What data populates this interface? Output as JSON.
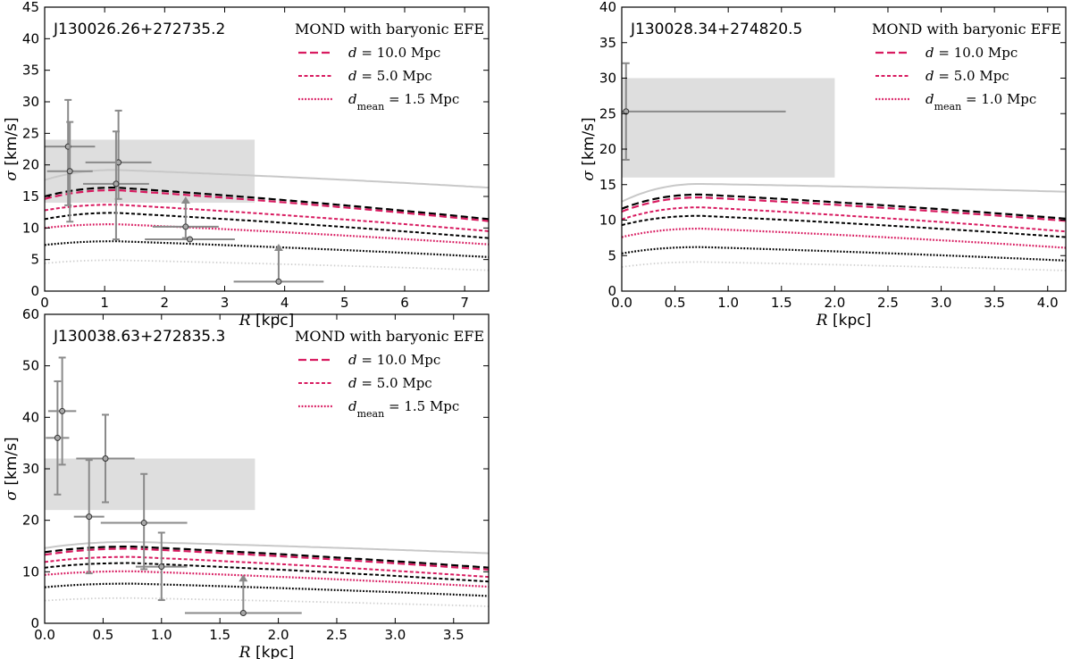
{
  "legend": {
    "title": "MOND with baryonic EFE",
    "d_prefix": "d",
    "dmean_prefix": "d",
    "dmean_sub": "mean",
    "eq": " = ",
    "unit": " Mpc"
  },
  "colors": {
    "pink": "#d81b60",
    "black": "#000000",
    "grey_curve": "#c8c8c8",
    "dotted_grey": "#cfcfcf",
    "shade": "#dedede",
    "errbar": "#8a8a8a",
    "marker": "#a8a8a8"
  },
  "chart_data": [
    {
      "type": "line",
      "title": "J130026.26+272735.2",
      "xlabel_symbol": "R",
      "xlabel_unit": "[kpc]",
      "ylabel_symbol": "σ",
      "ylabel_unit": "[km/s]",
      "xlim": [
        0,
        7.4
      ],
      "ylim": [
        0,
        45
      ],
      "xticks": [
        0,
        1,
        2,
        3,
        4,
        5,
        6,
        7
      ],
      "xtick_labels": [
        "0",
        "1",
        "2",
        "3",
        "4",
        "5",
        "6",
        "7"
      ],
      "yticks": [
        0,
        5,
        10,
        15,
        20,
        25,
        30,
        35,
        40,
        45
      ],
      "ytick_labels": [
        "0",
        "5",
        "10",
        "15",
        "20",
        "25",
        "30",
        "35",
        "40",
        "45"
      ],
      "legend_entries": [
        {
          "style": "long-dash",
          "distance": "10.0",
          "mean": false
        },
        {
          "style": "short-dash",
          "distance": "5.0",
          "mean": false
        },
        {
          "style": "dotted",
          "distance": "1.5",
          "mean": true
        }
      ],
      "shaded_region": {
        "x": [
          0,
          3.5
        ],
        "y": [
          14,
          24
        ]
      },
      "curves": [
        {
          "name": "grey",
          "peak": 19.2,
          "start": 17.6,
          "end": 16.4
        },
        {
          "name": "black-long",
          "peak": 16.4,
          "start": 15.0,
          "end": 11.4
        },
        {
          "name": "pink-long",
          "peak": 16.0,
          "start": 14.6,
          "end": 11.1
        },
        {
          "name": "pink-short",
          "peak": 13.7,
          "start": 12.8,
          "end": 9.5
        },
        {
          "name": "black-short",
          "peak": 12.4,
          "start": 11.4,
          "end": 8.4
        },
        {
          "name": "pink-dotted",
          "peak": 10.6,
          "start": 10.0,
          "end": 7.4
        },
        {
          "name": "black-dotted",
          "peak": 7.9,
          "start": 7.3,
          "end": 5.4
        },
        {
          "name": "grey-dotted",
          "peak": 4.9,
          "start": 4.4,
          "end": 3.3
        }
      ],
      "curve_peak_x": 1.2,
      "points": [
        {
          "x": 0.39,
          "y": 22.9,
          "xerr": 0.45,
          "yerr_lo": 9.3,
          "yerr_hi": 7.4
        },
        {
          "x": 0.42,
          "y": 19.0,
          "xerr": 0.38,
          "yerr_lo": 8.0,
          "yerr_hi": 7.8
        },
        {
          "x": 1.23,
          "y": 20.4,
          "xerr": 0.55,
          "yerr_lo": 5.8,
          "yerr_hi": 8.2
        },
        {
          "x": 1.19,
          "y": 17.0,
          "xerr": 0.55,
          "yerr_lo": 8.8,
          "yerr_hi": 8.3
        },
        {
          "x": 2.35,
          "y": 10.2,
          "xerr": 0.55,
          "yerr_lo": 1.8,
          "yerr_hi": 0,
          "upper": 15.0
        },
        {
          "x": 2.42,
          "y": 8.2,
          "xerr": 0.75,
          "yerr_lo": 0,
          "yerr_hi": 0
        },
        {
          "x": 3.9,
          "y": 1.5,
          "xerr": 0.75,
          "yerr_lo": 0,
          "yerr_hi": 0,
          "upper": 7.5
        }
      ]
    },
    {
      "type": "line",
      "title": "J130028.34+274820.5",
      "xlabel_symbol": "R",
      "xlabel_unit": "[kpc]",
      "ylabel_symbol": "σ",
      "ylabel_unit": "[km/s]",
      "xlim": [
        0,
        4.17
      ],
      "ylim": [
        0,
        40
      ],
      "xticks": [
        0,
        0.5,
        1,
        1.5,
        2,
        2.5,
        3,
        3.5,
        4
      ],
      "xtick_labels": [
        "0.0",
        "0.5",
        "1.0",
        "1.5",
        "2.0",
        "2.5",
        "3.0",
        "3.5",
        "4.0"
      ],
      "yticks": [
        0,
        5,
        10,
        15,
        20,
        25,
        30,
        35,
        40
      ],
      "ytick_labels": [
        "0",
        "5",
        "10",
        "15",
        "20",
        "25",
        "30",
        "35",
        "40"
      ],
      "legend_entries": [
        {
          "style": "long-dash",
          "distance": "10.0",
          "mean": false
        },
        {
          "style": "short-dash",
          "distance": "5.0",
          "mean": false
        },
        {
          "style": "dotted",
          "distance": "1.0",
          "mean": true
        }
      ],
      "shaded_region": {
        "x": [
          0,
          2.0
        ],
        "y": [
          16,
          30
        ]
      },
      "curves": [
        {
          "name": "grey",
          "peak": 15.1,
          "start": 12.6,
          "end": 14.0
        },
        {
          "name": "black-long",
          "peak": 13.6,
          "start": 11.6,
          "end": 10.2
        },
        {
          "name": "pink-long",
          "peak": 13.2,
          "start": 11.2,
          "end": 9.9
        },
        {
          "name": "pink-short",
          "peak": 11.8,
          "start": 10.1,
          "end": 8.4
        },
        {
          "name": "black-short",
          "peak": 10.6,
          "start": 9.3,
          "end": 7.6
        },
        {
          "name": "pink-dotted",
          "peak": 8.8,
          "start": 7.6,
          "end": 6.1
        },
        {
          "name": "black-dotted",
          "peak": 6.2,
          "start": 5.3,
          "end": 4.3
        },
        {
          "name": "grey-dotted",
          "peak": 4.1,
          "start": 3.4,
          "end": 2.9
        }
      ],
      "curve_peak_x": 0.75,
      "points": [
        {
          "x": 0.04,
          "y": 25.3,
          "xerr_lo": 0.04,
          "xerr_hi": 1.5,
          "yerr_lo": 6.8,
          "yerr_hi": 6.8
        }
      ]
    },
    {
      "type": "line",
      "title": "J130038.63+272835.3",
      "xlabel_symbol": "R",
      "xlabel_unit": "[kpc]",
      "ylabel_symbol": "σ",
      "ylabel_unit": "[km/s]",
      "xlim": [
        0,
        3.8
      ],
      "ylim": [
        0,
        60
      ],
      "xticks": [
        0,
        0.5,
        1,
        1.5,
        2,
        2.5,
        3,
        3.5
      ],
      "xtick_labels": [
        "0.0",
        "0.5",
        "1.0",
        "1.5",
        "2.0",
        "2.5",
        "3.0",
        "3.5"
      ],
      "yticks": [
        0,
        10,
        20,
        30,
        40,
        50,
        60
      ],
      "ytick_labels": [
        "0",
        "10",
        "20",
        "30",
        "40",
        "50",
        "60"
      ],
      "legend_entries": [
        {
          "style": "long-dash",
          "distance": "10.0",
          "mean": false
        },
        {
          "style": "short-dash",
          "distance": "5.0",
          "mean": false
        },
        {
          "style": "dotted",
          "distance": "1.5",
          "mean": true
        }
      ],
      "shaded_region": {
        "x": [
          0,
          1.8
        ],
        "y": [
          22,
          32
        ]
      },
      "curves": [
        {
          "name": "grey",
          "peak": 15.8,
          "start": 14.6,
          "end": 13.6
        },
        {
          "name": "black-long",
          "peak": 14.9,
          "start": 13.8,
          "end": 10.8
        },
        {
          "name": "pink-long",
          "peak": 14.5,
          "start": 13.3,
          "end": 10.4
        },
        {
          "name": "pink-short",
          "peak": 12.9,
          "start": 11.9,
          "end": 9.0
        },
        {
          "name": "black-short",
          "peak": 11.7,
          "start": 10.8,
          "end": 8.1
        },
        {
          "name": "pink-dotted",
          "peak": 10.1,
          "start": 9.4,
          "end": 7.1
        },
        {
          "name": "black-dotted",
          "peak": 7.7,
          "start": 7.0,
          "end": 5.3
        },
        {
          "name": "grey-dotted",
          "peak": 4.9,
          "start": 4.4,
          "end": 3.3
        }
      ],
      "curve_peak_x": 0.75,
      "points": [
        {
          "x": 0.15,
          "y": 41.2,
          "xerr": 0.12,
          "yerr_lo": 10.4,
          "yerr_hi": 10.4
        },
        {
          "x": 0.11,
          "y": 36.0,
          "xerr": 0.1,
          "yerr_lo": 11.0,
          "yerr_hi": 11.0
        },
        {
          "x": 0.52,
          "y": 32.0,
          "xerr": 0.25,
          "yerr_lo": 8.5,
          "yerr_hi": 8.5
        },
        {
          "x": 0.38,
          "y": 20.7,
          "xerr": 0.13,
          "yerr_lo": 11.0,
          "yerr_hi": 11.0
        },
        {
          "x": 0.85,
          "y": 19.5,
          "xerr": 0.37,
          "yerr_lo": 9.0,
          "yerr_hi": 9.5
        },
        {
          "x": 1.0,
          "y": 11.0,
          "xerr": 0.22,
          "yerr_lo": 6.5,
          "yerr_hi": 6.6
        },
        {
          "x": 1.7,
          "y": 2.0,
          "xerr": 0.5,
          "yerr_lo": 0,
          "yerr_hi": 0,
          "upper": 9.5
        }
      ]
    }
  ]
}
